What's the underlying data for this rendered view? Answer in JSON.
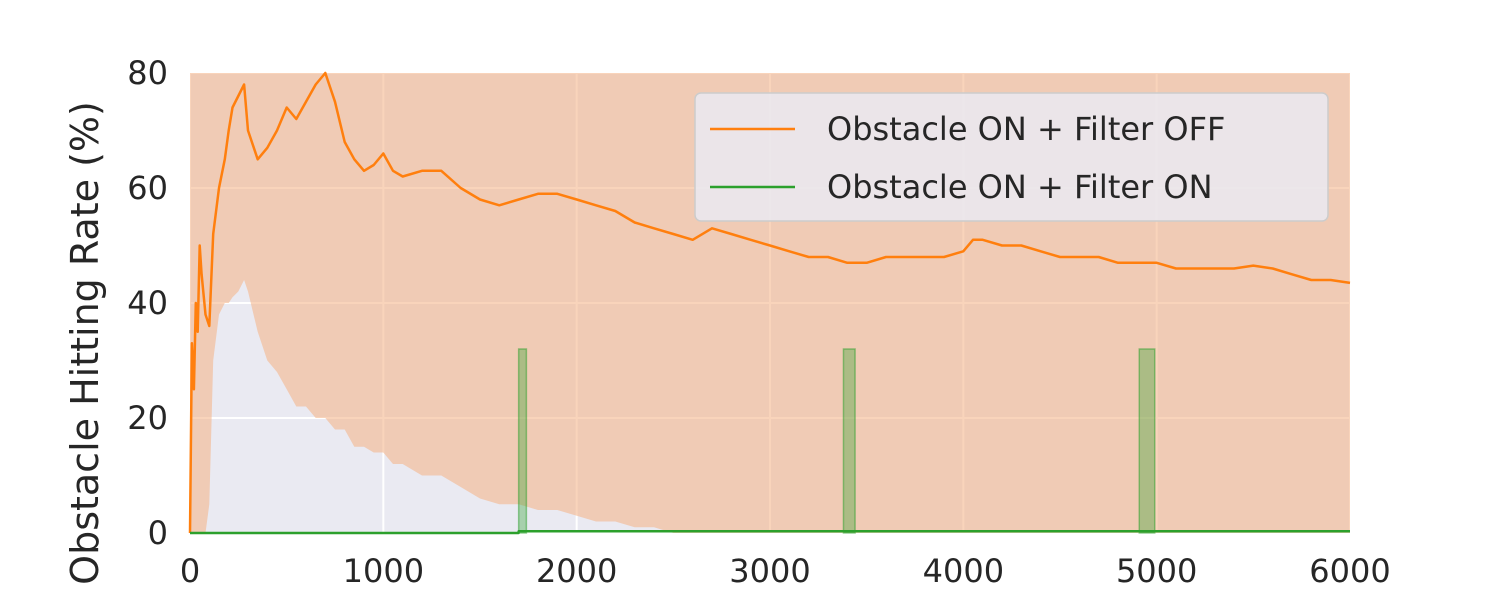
{
  "chart_data": {
    "type": "line",
    "title": "",
    "xlabel": "",
    "ylabel": "Obstacle Hitting Rate (%)",
    "xlim": [
      0,
      6000
    ],
    "ylim": [
      0,
      80
    ],
    "x_ticks": [
      0,
      1000,
      2000,
      3000,
      4000,
      5000,
      6000
    ],
    "y_ticks": [
      0,
      20,
      40,
      60,
      80
    ],
    "grid": true,
    "legend_position": "top-right",
    "series": [
      {
        "name": "Obstacle ON  + Filter OFF",
        "color": "#ff7f0e",
        "band_color": "#f4b183",
        "x": [
          0,
          10,
          20,
          30,
          40,
          50,
          60,
          80,
          100,
          120,
          150,
          180,
          200,
          220,
          250,
          280,
          300,
          350,
          400,
          450,
          500,
          550,
          600,
          650,
          700,
          750,
          800,
          850,
          900,
          950,
          1000,
          1050,
          1100,
          1200,
          1300,
          1400,
          1500,
          1600,
          1700,
          1800,
          1900,
          2000,
          2100,
          2200,
          2300,
          2400,
          2500,
          2600,
          2700,
          2800,
          2900,
          3000,
          3100,
          3200,
          3300,
          3400,
          3500,
          3600,
          3700,
          3800,
          3900,
          4000,
          4050,
          4100,
          4200,
          4300,
          4400,
          4500,
          4600,
          4700,
          4800,
          4900,
          5000,
          5100,
          5200,
          5300,
          5400,
          5500,
          5600,
          5700,
          5800,
          5900,
          6000
        ],
        "y": [
          0,
          33,
          25,
          40,
          35,
          50,
          45,
          38,
          36,
          52,
          60,
          65,
          70,
          74,
          76,
          78,
          70,
          65,
          67,
          70,
          74,
          72,
          75,
          78,
          80,
          75,
          68,
          65,
          63,
          64,
          66,
          63,
          62,
          63,
          63,
          60,
          58,
          57,
          58,
          59,
          59,
          58,
          57,
          56,
          54,
          53,
          52,
          51,
          53,
          52,
          51,
          50,
          49,
          48,
          48,
          47,
          47,
          48,
          48,
          48,
          48,
          49,
          51,
          51,
          50,
          50,
          49,
          48,
          48,
          48,
          47,
          47,
          47,
          46,
          46,
          46,
          46,
          46.5,
          46,
          45,
          44,
          44,
          43.5
        ],
        "band_lower": [
          0,
          0,
          0,
          0,
          0,
          0,
          0,
          0,
          5,
          30,
          38,
          40,
          40,
          41,
          42,
          44,
          42,
          35,
          30,
          28,
          25,
          22,
          22,
          20,
          20,
          18,
          18,
          15,
          15,
          14,
          14,
          12,
          12,
          10,
          10,
          8,
          6,
          5,
          5,
          4,
          4,
          3,
          2,
          2,
          1,
          1,
          0,
          0,
          0,
          0,
          0,
          0,
          0,
          0,
          0,
          0,
          0,
          0,
          0,
          0,
          0,
          0,
          0,
          0,
          0,
          0,
          0,
          0,
          0,
          0,
          0,
          0,
          0,
          0,
          0,
          0,
          0,
          0,
          0,
          0,
          0,
          0,
          0
        ],
        "band_upper": [
          80,
          80,
          80,
          80,
          80,
          80,
          80,
          80,
          80,
          80,
          80,
          80,
          80,
          80,
          80,
          80,
          80,
          80,
          80,
          80,
          80,
          80,
          80,
          80,
          80,
          80,
          80,
          80,
          80,
          80,
          80,
          80,
          80,
          80,
          80,
          80,
          80,
          80,
          80,
          80,
          80,
          80,
          80,
          80,
          80,
          80,
          80,
          80,
          80,
          80,
          80,
          80,
          80,
          80,
          80,
          80,
          80,
          80,
          80,
          80,
          80,
          80,
          80,
          80,
          80,
          80,
          80,
          80,
          80,
          80,
          80,
          80,
          80,
          80,
          80,
          80,
          80,
          80,
          80,
          80,
          80,
          80,
          80
        ]
      },
      {
        "name": "Obstacle ON  + Filter ON",
        "color": "#2ca02c",
        "band_color": "#2ca02c",
        "x": [
          0,
          1699,
          1700,
          6000
        ],
        "y": [
          0,
          0,
          0.3,
          0.3
        ],
        "bands": [
          {
            "x_start": 1700,
            "x_end": 1740,
            "lower": 0,
            "upper": 32
          },
          {
            "x_start": 3380,
            "x_end": 3440,
            "lower": 0,
            "upper": 32
          },
          {
            "x_start": 4910,
            "x_end": 4990,
            "lower": 0,
            "upper": 32
          }
        ]
      }
    ]
  }
}
